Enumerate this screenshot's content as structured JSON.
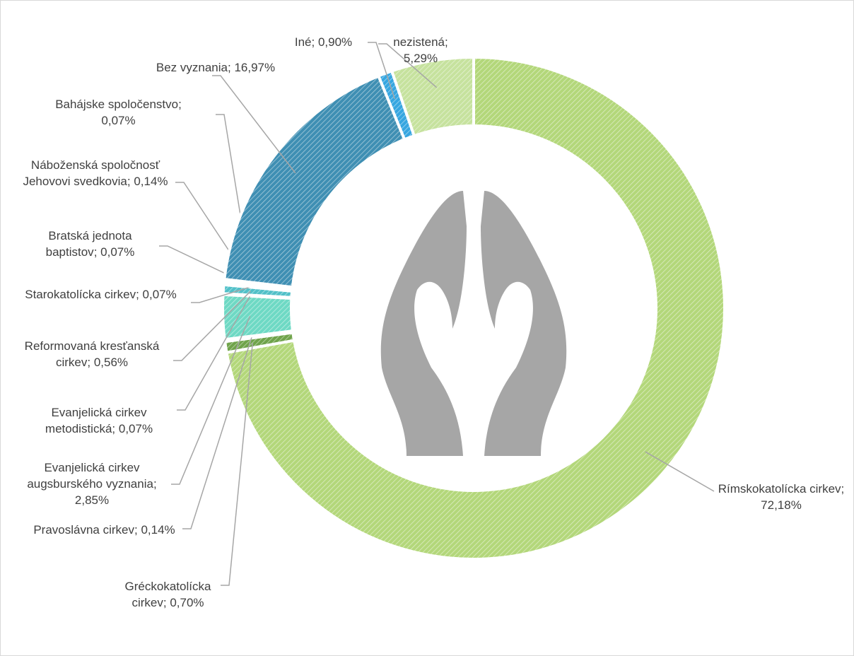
{
  "chart_data": {
    "type": "donut",
    "categories": [
      "Rímskokatolícka cirkev",
      "Gréckokatolícka cirkev",
      "Pravoslávna cirkev",
      "Evanjelická cirkev augsburského vyznania",
      "Evanjelická cirkev metodistická",
      "Reformovaná kresťanská cirkev",
      "Starokatolícka cirkev",
      "Bratská jednota baptistov",
      "Náboženská spoločnosť Jehovovi svedkovia",
      "Bahájske spoločenstvo",
      "Bez vyznania",
      "Iné",
      "nezistená"
    ],
    "values": [
      72.18,
      0.7,
      0.14,
      2.85,
      0.07,
      0.56,
      0.07,
      0.07,
      0.14,
      0.07,
      16.97,
      0.9,
      5.29
    ],
    "value_labels": [
      "72,18%",
      "0,70%",
      "0,14%",
      "2,85%",
      "0,07%",
      "0,56%",
      "0,07%",
      "0,07%",
      "0,14%",
      "0,07%",
      "16,97%",
      "0,90%",
      "5,29%"
    ],
    "label_separator": "; ",
    "colors": [
      "#b3d77a",
      "#6fa34a",
      "#5fb89a",
      "#6ed9c4",
      "#5ccfc0",
      "#50c0c8",
      "#45b6df",
      "#3ea9d4",
      "#3a9ecb",
      "#3896c0",
      "#3f8fb3",
      "#36a6e0",
      "#c6e29e"
    ]
  }
}
